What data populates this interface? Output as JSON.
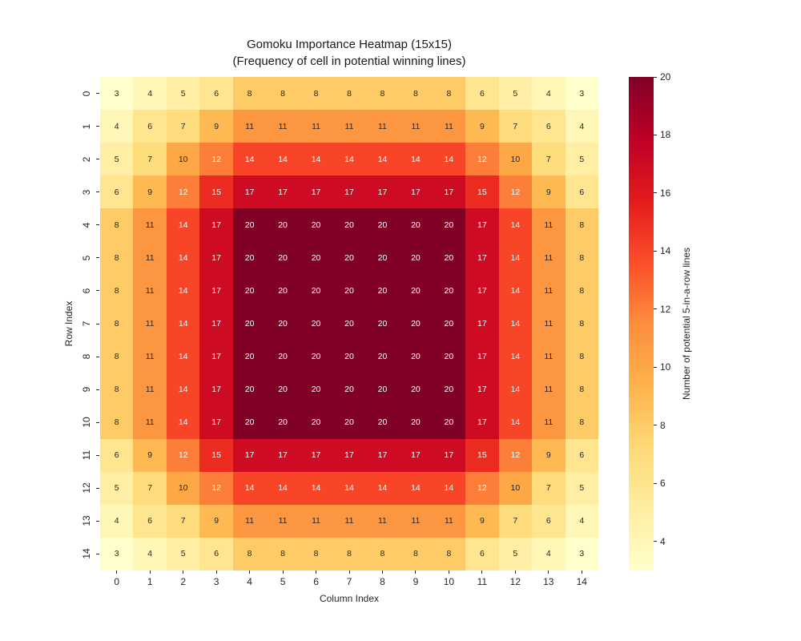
{
  "title": {
    "line1": "Gomoku Importance Heatmap (15x15)",
    "line2": "(Frequency of cell in potential winning lines)"
  },
  "chart_data": {
    "type": "heatmap",
    "title": "Gomoku Importance Heatmap (15x15)",
    "subtitle": "(Frequency of cell in potential winning lines)",
    "xlabel": "Column Index",
    "ylabel": "Row Index",
    "x_tick_labels": [
      "0",
      "1",
      "2",
      "3",
      "4",
      "5",
      "6",
      "7",
      "8",
      "9",
      "10",
      "11",
      "12",
      "13",
      "14"
    ],
    "y_tick_labels": [
      "0",
      "1",
      "2",
      "3",
      "4",
      "5",
      "6",
      "7",
      "8",
      "9",
      "10",
      "11",
      "12",
      "13",
      "14"
    ],
    "matrix": [
      [
        3,
        4,
        5,
        6,
        8,
        8,
        8,
        8,
        8,
        8,
        8,
        6,
        5,
        4,
        3
      ],
      [
        4,
        6,
        7,
        9,
        11,
        11,
        11,
        11,
        11,
        11,
        11,
        9,
        7,
        6,
        4
      ],
      [
        5,
        7,
        10,
        12,
        14,
        14,
        14,
        14,
        14,
        14,
        14,
        12,
        10,
        7,
        5
      ],
      [
        6,
        9,
        12,
        15,
        17,
        17,
        17,
        17,
        17,
        17,
        17,
        15,
        12,
        9,
        6
      ],
      [
        8,
        11,
        14,
        17,
        20,
        20,
        20,
        20,
        20,
        20,
        20,
        17,
        14,
        11,
        8
      ],
      [
        8,
        11,
        14,
        17,
        20,
        20,
        20,
        20,
        20,
        20,
        20,
        17,
        14,
        11,
        8
      ],
      [
        8,
        11,
        14,
        17,
        20,
        20,
        20,
        20,
        20,
        20,
        20,
        17,
        14,
        11,
        8
      ],
      [
        8,
        11,
        14,
        17,
        20,
        20,
        20,
        20,
        20,
        20,
        20,
        17,
        14,
        11,
        8
      ],
      [
        8,
        11,
        14,
        17,
        20,
        20,
        20,
        20,
        20,
        20,
        20,
        17,
        14,
        11,
        8
      ],
      [
        8,
        11,
        14,
        17,
        20,
        20,
        20,
        20,
        20,
        20,
        20,
        17,
        14,
        11,
        8
      ],
      [
        8,
        11,
        14,
        17,
        20,
        20,
        20,
        20,
        20,
        20,
        20,
        17,
        14,
        11,
        8
      ],
      [
        6,
        9,
        12,
        15,
        17,
        17,
        17,
        17,
        17,
        17,
        17,
        15,
        12,
        9,
        6
      ],
      [
        5,
        7,
        10,
        12,
        14,
        14,
        14,
        14,
        14,
        14,
        14,
        12,
        10,
        7,
        5
      ],
      [
        4,
        6,
        7,
        9,
        11,
        11,
        11,
        11,
        11,
        11,
        11,
        9,
        7,
        6,
        4
      ],
      [
        3,
        4,
        5,
        6,
        8,
        8,
        8,
        8,
        8,
        8,
        8,
        6,
        5,
        4,
        3
      ]
    ],
    "value_colors": {
      "3": "#ffffcc",
      "4": "#fff7b7",
      "5": "#ffeea3",
      "6": "#ffe58f",
      "7": "#fedb7b",
      "8": "#fecb67",
      "9": "#feb953",
      "10": "#fea747",
      "11": "#fd9640",
      "12": "#fd7e38",
      "14": "#f84528",
      "15": "#ec2c21",
      "17": "#cd0b22",
      "20": "#800026"
    },
    "annotation_colors": {
      "dark": "#262626",
      "light": "#ffffff"
    },
    "white_text_threshold": 12,
    "colorbar": {
      "label": "Number of potential 5-in-a-row lines",
      "min": 3,
      "max": 20,
      "ticks": [
        "4",
        "6",
        "8",
        "10",
        "12",
        "14",
        "16",
        "18",
        "20"
      ],
      "colormap_name": "YlOrRd",
      "gradient_stops": [
        {
          "pos": 0.0,
          "color": "#ffffcc"
        },
        {
          "pos": 0.125,
          "color": "#ffeda0"
        },
        {
          "pos": 0.25,
          "color": "#fed976"
        },
        {
          "pos": 0.375,
          "color": "#feb24c"
        },
        {
          "pos": 0.5,
          "color": "#fd8d3c"
        },
        {
          "pos": 0.625,
          "color": "#fc4e2a"
        },
        {
          "pos": 0.75,
          "color": "#e31a1c"
        },
        {
          "pos": 0.875,
          "color": "#bd0026"
        },
        {
          "pos": 1.0,
          "color": "#800026"
        }
      ]
    }
  }
}
